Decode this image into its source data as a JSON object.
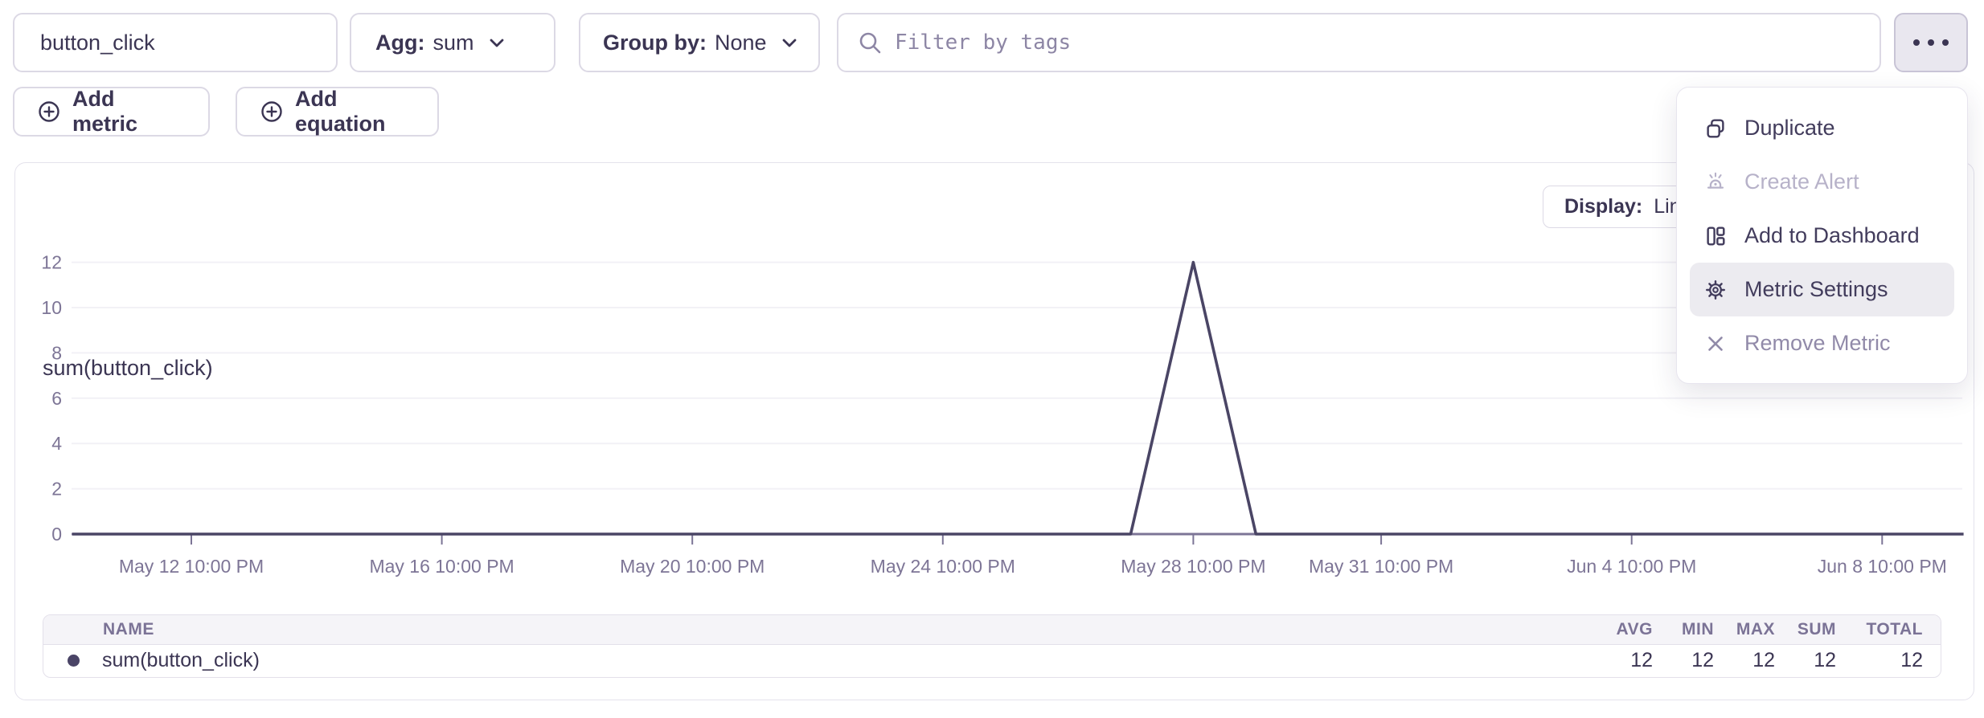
{
  "toolbar": {
    "metric_name": "button_click",
    "agg": {
      "label": "Agg:",
      "value": "sum"
    },
    "group_by": {
      "label": "Group by:",
      "value": "None"
    },
    "filter": {
      "placeholder": "Filter by tags"
    },
    "add_metric_label": "Add metric",
    "add_equation_label": "Add equation"
  },
  "menu": {
    "items": [
      {
        "id": "duplicate",
        "label": "Duplicate",
        "icon": "duplicate-icon",
        "state": "normal"
      },
      {
        "id": "create-alert",
        "label": "Create Alert",
        "icon": "alert-icon",
        "state": "disabled"
      },
      {
        "id": "add-to-dashboard",
        "label": "Add to Dashboard",
        "icon": "dashboard-icon",
        "state": "normal"
      },
      {
        "id": "metric-settings",
        "label": "Metric Settings",
        "icon": "gear-icon",
        "state": "highlighted"
      },
      {
        "id": "remove-metric",
        "label": "Remove Metric",
        "icon": "close-icon",
        "state": "muted"
      }
    ]
  },
  "panel": {
    "title": "sum(button_click)",
    "display": {
      "label": "Display:",
      "value": "Line"
    }
  },
  "chart_data": {
    "type": "line",
    "title": "sum(button_click)",
    "xlabel": "",
    "ylabel": "",
    "ylim": [
      0,
      12
    ],
    "y_ticks": [
      0,
      2,
      4,
      6,
      8,
      10,
      12
    ],
    "grid": "horizontal-faint",
    "legend_position": "table-below",
    "x_ticks": [
      {
        "label": "May 12 10:00 PM",
        "day": 0
      },
      {
        "label": "May 16 10:00 PM",
        "day": 4
      },
      {
        "label": "May 20 10:00 PM",
        "day": 8
      },
      {
        "label": "May 24 10:00 PM",
        "day": 12
      },
      {
        "label": "May 28 10:00 PM",
        "day": 16
      },
      {
        "label": "May 31 10:00 PM",
        "day": 19
      },
      {
        "label": "Jun 4 10:00 PM",
        "day": 23
      },
      {
        "label": "Jun 8 10:00 PM",
        "day": 27
      }
    ],
    "x_domain_days": [
      -1.9,
      28.3
    ],
    "series": [
      {
        "name": "sum(button_click)",
        "color": "#4a4565",
        "points": [
          {
            "day": -1.9,
            "value": 0
          },
          {
            "day": 15,
            "value": 0
          },
          {
            "day": 16,
            "value": 12
          },
          {
            "day": 17,
            "value": 0
          },
          {
            "day": 28.3,
            "value": 0
          }
        ]
      }
    ]
  },
  "summary_table": {
    "columns": [
      "NAME",
      "AVG",
      "MIN",
      "MAX",
      "SUM",
      "TOTAL"
    ],
    "rows": [
      {
        "name": "sum(button_click)",
        "avg": "12",
        "min": "12",
        "max": "12",
        "sum": "12",
        "total": "12",
        "dot_color": "#4a4466"
      }
    ]
  },
  "colors": {
    "accent_text": "#3b3553",
    "muted_purple": "#7d7596",
    "disabled": "#b7b2c9",
    "line_series": "#4a4565",
    "axis": "#7c7596",
    "grid_faint": "#f2f1f6",
    "highlight_bg": "#ecebf0",
    "more_btn_bg": "#e9e7ef",
    "border": "#dcd9e5"
  }
}
